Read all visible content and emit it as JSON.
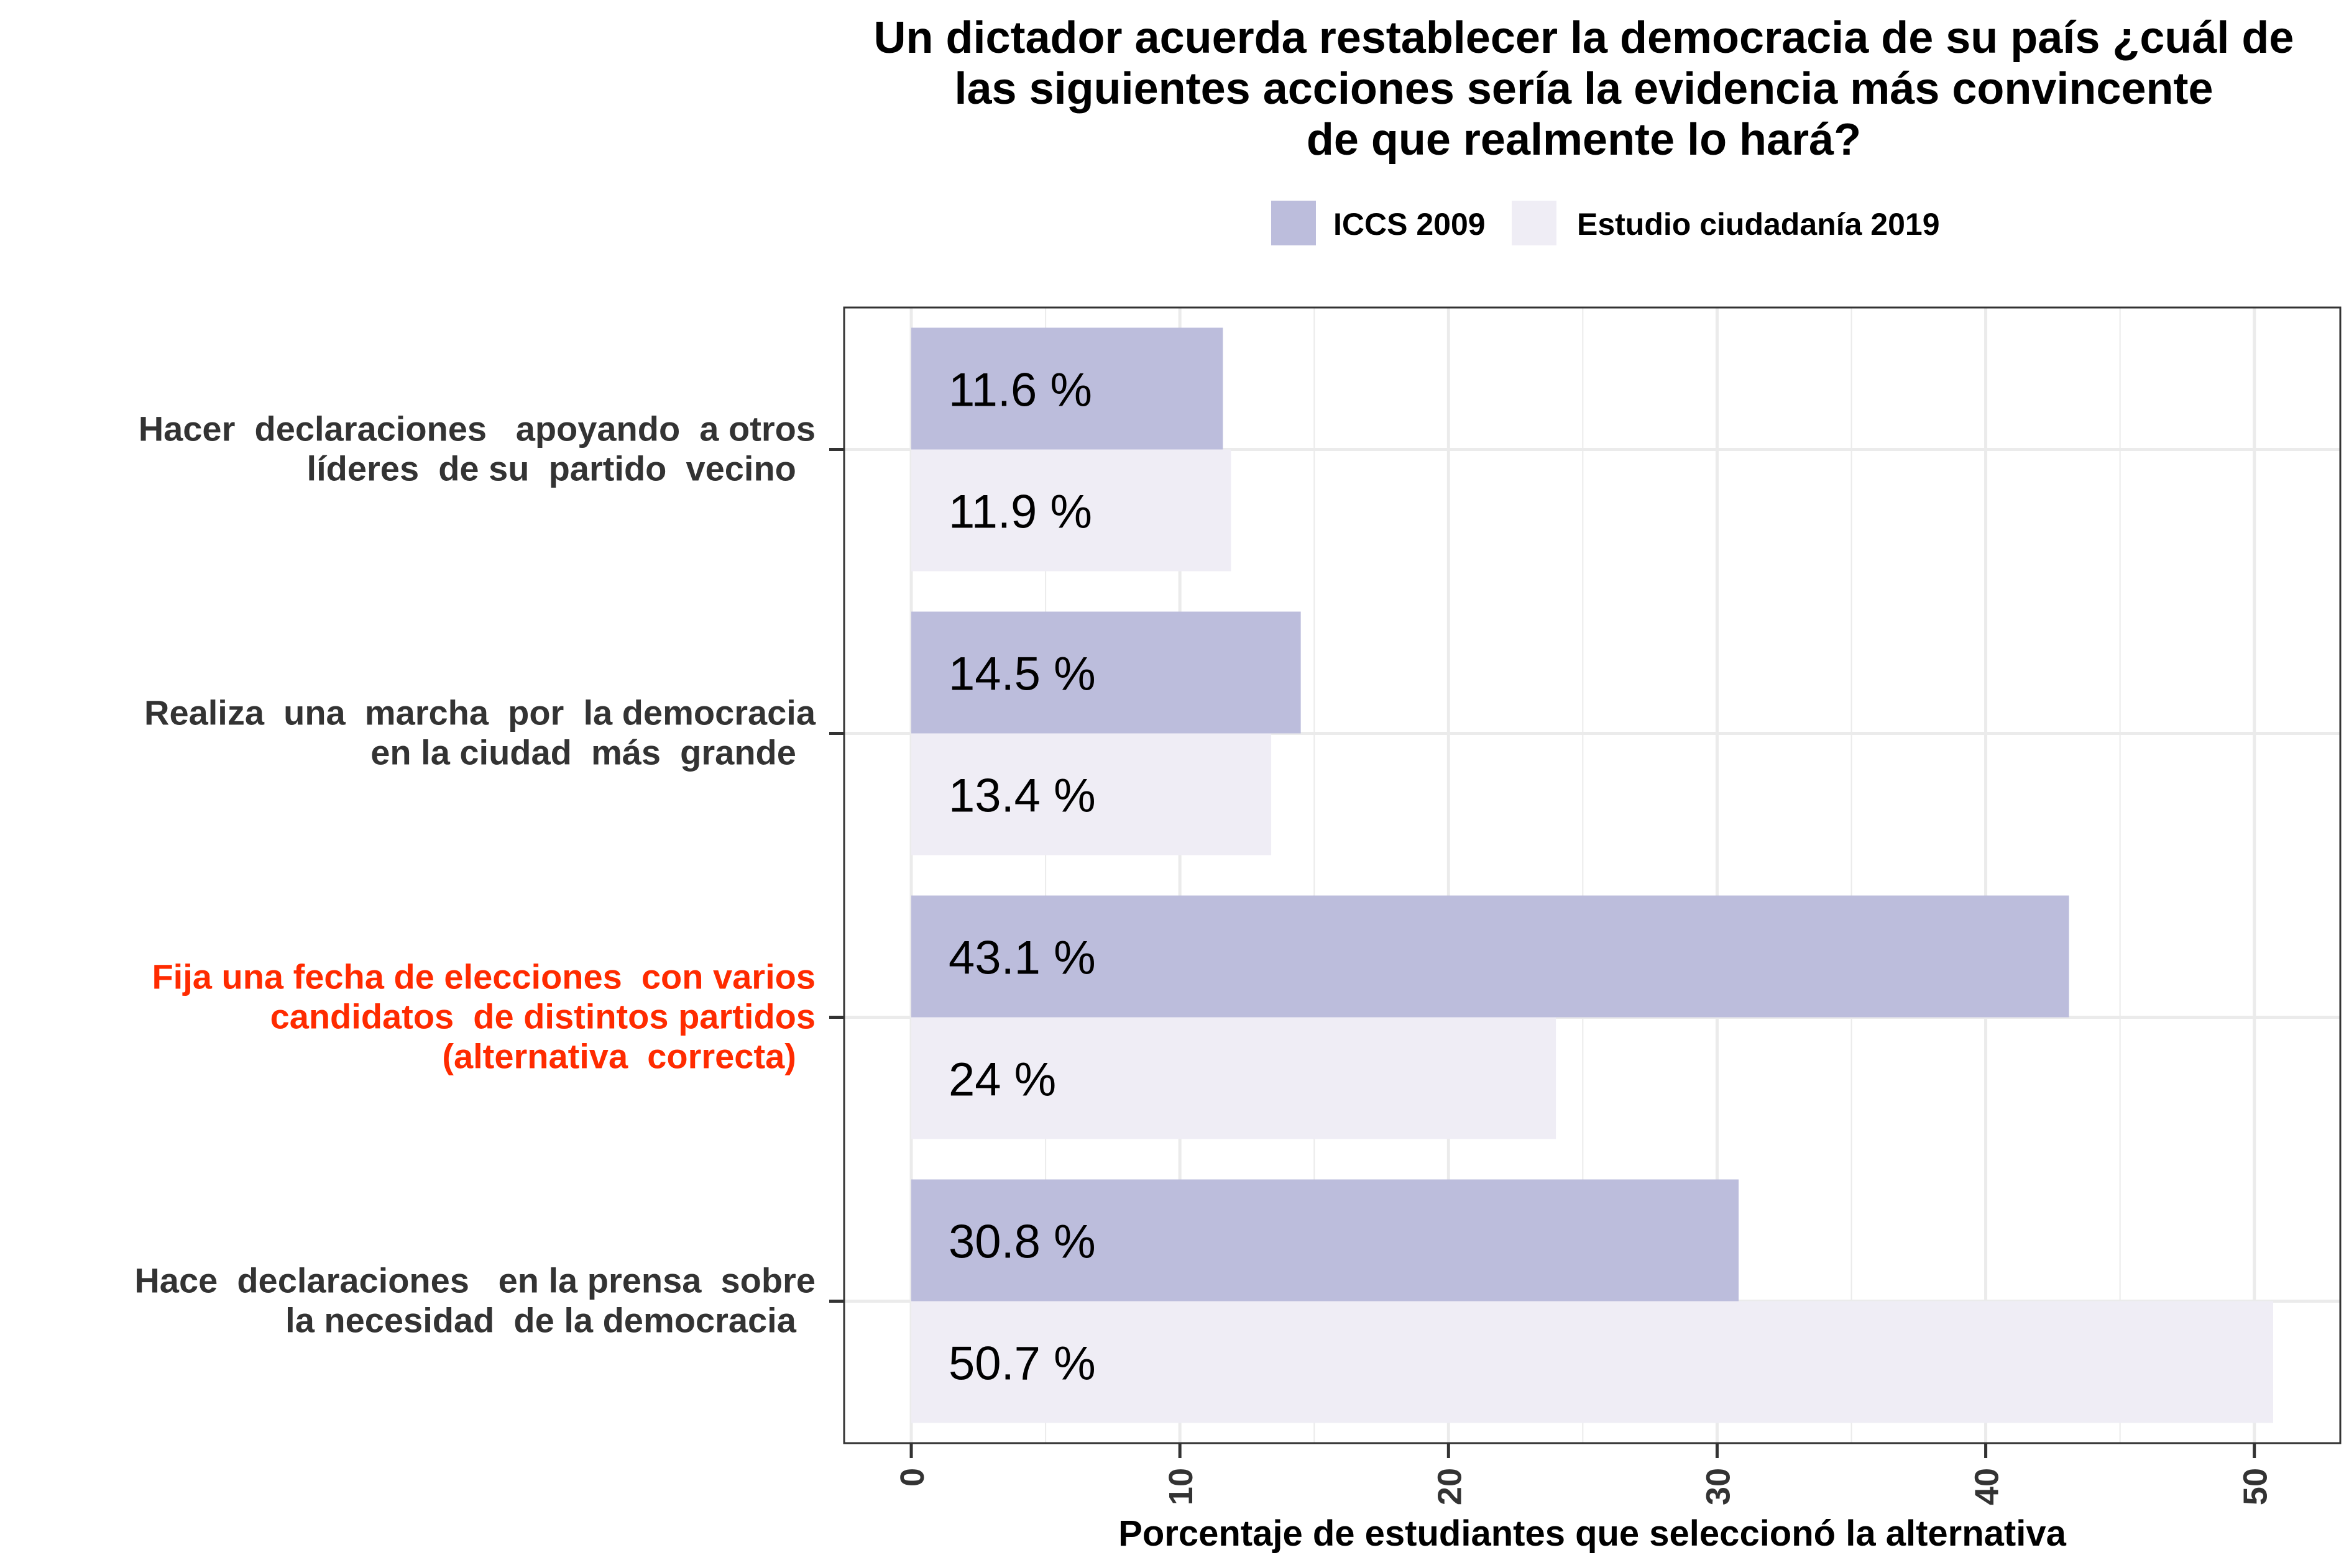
{
  "chart_data": {
    "type": "bar",
    "orientation": "horizontal",
    "title": [
      "Un dictador acuerda restablecer la democracia de su país ¿cuál de",
      "las siguientes acciones sería la evidencia más convincente",
      "de que realmente lo hará?"
    ],
    "xlabel": "Porcentaje de estudiantes que seleccionó la alternativa",
    "ylabel": "",
    "xlim": [
      -2.5,
      53.2
    ],
    "x_ticks": [
      0,
      10,
      20,
      30,
      40,
      50
    ],
    "grid": true,
    "legend_position": "top",
    "categories": [
      {
        "label": [
          "Hacer  declaraciones   apoyando  a otros",
          "líderes  de su  partido  vecino  "
        ],
        "highlight": false
      },
      {
        "label": [
          "Realiza  una  marcha  por  la democracia",
          "en la ciudad  más  grande  "
        ],
        "highlight": false
      },
      {
        "label": [
          "Fija una fecha de elecciones  con varios",
          "candidatos  de distintos partidos",
          "(alternativa  correcta)  "
        ],
        "highlight": true
      },
      {
        "label": [
          "Hace  declaraciones   en la prensa  sobre",
          "la necesidad  de la democracia  "
        ],
        "highlight": false
      }
    ],
    "series": [
      {
        "name": "ICCS 2009",
        "color": "#bcbddc",
        "values": [
          11.6,
          14.5,
          43.1,
          30.8
        ],
        "data_labels": [
          "11.6 %",
          "14.5 %",
          "43.1 %",
          "30.8 %"
        ]
      },
      {
        "name": "Estudio ciudadanía 2019",
        "color": "#efedf5",
        "values": [
          11.9,
          13.4,
          24,
          50.7
        ],
        "data_labels": [
          "11.9 %",
          "13.4 %",
          "24 %",
          "50.7 %"
        ]
      }
    ],
    "colors": {
      "label_text": "#333333",
      "highlight_text": "#ff2b00",
      "grid": "#ebebeb",
      "frame": "#333333"
    }
  }
}
